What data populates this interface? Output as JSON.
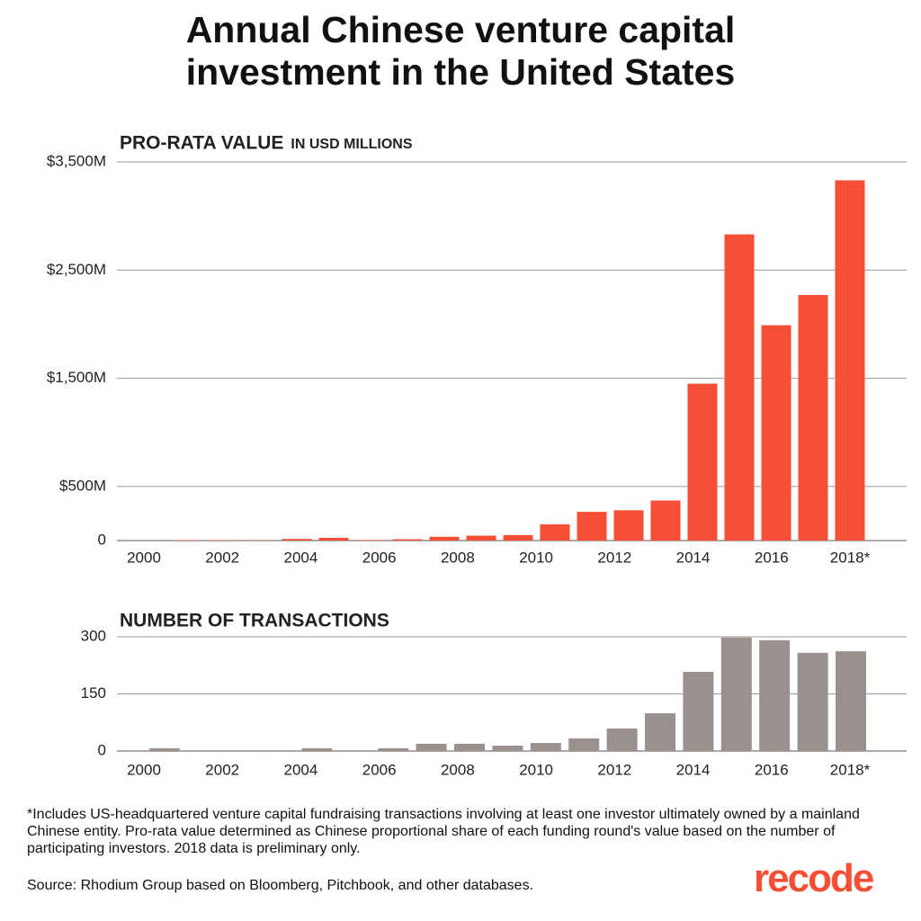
{
  "title": "Annual Chinese venture capital investment in the United States",
  "chart_data": [
    {
      "type": "bar",
      "title": "PRO-RATA VALUE",
      "subtitle": "IN USD MILLIONS",
      "categories": [
        "2000",
        null,
        "2002",
        null,
        "2004",
        null,
        "2006",
        null,
        "2008",
        null,
        "2010",
        null,
        "2012",
        null,
        "2014",
        null,
        "2016",
        null,
        "2018*"
      ],
      "values": [
        3,
        3,
        2,
        15,
        25,
        5,
        12,
        35,
        45,
        50,
        150,
        265,
        280,
        370,
        1450,
        2830,
        1990,
        2270,
        3330
      ],
      "color": "#f64f36",
      "ylim": [
        0,
        3500
      ],
      "yticks": [
        0,
        {
          "value": 500,
          "label": "$500M"
        },
        {
          "value": 1500,
          "label": "$1,500M"
        },
        {
          "value": 2500,
          "label": "$2,500M"
        },
        {
          "value": 3500,
          "label": "$3,500M"
        }
      ],
      "grid": true
    },
    {
      "type": "bar",
      "title": "NUMBER OF TRANSACTIONS",
      "categories": [
        "2000",
        null,
        "2002",
        null,
        "2004",
        null,
        "2006",
        null,
        "2008",
        null,
        "2010",
        null,
        "2012",
        null,
        "2014",
        null,
        "2016",
        null,
        "2018*"
      ],
      "values": [
        7,
        2,
        2,
        2,
        7,
        2,
        7,
        19,
        19,
        14,
        21,
        33,
        59,
        99,
        208,
        298,
        291,
        258,
        262
      ],
      "color": "#9a918f",
      "ylim": [
        0,
        300
      ],
      "yticks": [
        0,
        150,
        300
      ],
      "grid": true
    }
  ],
  "footnote": "*Includes US-headquartered venture capital fundraising transactions involving at least one investor ultimately owned by a mainland Chinese entity. Pro-rata value determined as Chinese proportional share of each funding round's value based on the number of participating investors. 2018 data is preliminary only.",
  "source": "Source: Rhodium Group based on Bloomberg, Pitchbook, and other databases.",
  "logo": "recode"
}
